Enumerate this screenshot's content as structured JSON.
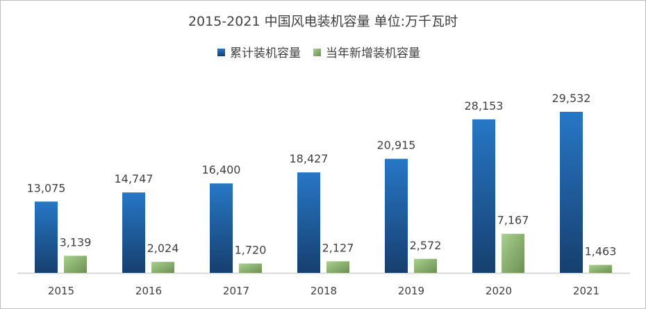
{
  "chart_data": {
    "type": "bar",
    "title": "2015-2021 中国风电装机容量 单位:万千瓦时",
    "categories": [
      "2015",
      "2016",
      "2017",
      "2018",
      "2019",
      "2020",
      "2021"
    ],
    "series": [
      {
        "name": "累计装机容量",
        "values": [
          13075,
          14747,
          16400,
          18427,
          20915,
          28153,
          29532
        ],
        "labels": [
          "13,075",
          "14,747",
          "16,400",
          "18,427",
          "20,915",
          "28,153",
          "29,532"
        ],
        "color": "#2473c0"
      },
      {
        "name": "当年新增装机容量",
        "values": [
          3139,
          2024,
          1720,
          2127,
          2572,
          7167,
          1463
        ],
        "labels": [
          "3,139",
          "2,024",
          "1,720",
          "2,127",
          "2,572",
          "7,167",
          "1,463"
        ],
        "color": "#9cc67e"
      }
    ],
    "xlabel": "",
    "ylabel": "",
    "legend": "top",
    "grid": false
  }
}
